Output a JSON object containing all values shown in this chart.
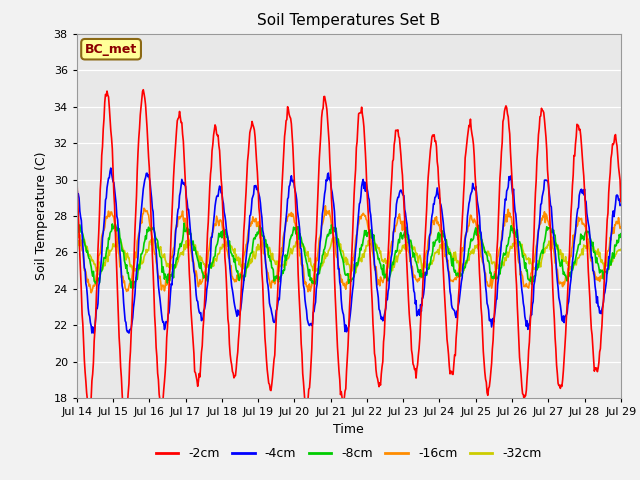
{
  "title": "Soil Temperatures Set B",
  "xlabel": "Time",
  "ylabel": "Soil Temperature (C)",
  "ylim": [
    18,
    38
  ],
  "yticks": [
    18,
    20,
    22,
    24,
    26,
    28,
    30,
    32,
    34,
    36,
    38
  ],
  "xtick_labels": [
    "Jul 14",
    "Jul 15",
    "Jul 16",
    "Jul 17",
    "Jul 18",
    "Jul 19",
    "Jul 20",
    "Jul 21",
    "Jul 22",
    "Jul 23",
    "Jul 24",
    "Jul 25",
    "Jul 26",
    "Jul 27",
    "Jul 28",
    "Jul 29"
  ],
  "series_colors": {
    "-2cm": "#FF0000",
    "-4cm": "#0000FF",
    "-8cm": "#00CC00",
    "-16cm": "#FF8C00",
    "-32cm": "#CCCC00"
  },
  "legend_label": "BC_met",
  "legend_fg": "#8B0000",
  "legend_bg": "#FFFF99",
  "legend_border": "#8B6914",
  "plot_bg": "#E8E8E8",
  "fig_bg": "#F2F2F2",
  "grid_color": "#FFFFFF",
  "linewidth": 1.2,
  "n_days": 15,
  "samples_per_day": 48,
  "mean_temp": 26.0,
  "amplitudes": {
    "-2cm": 8.0,
    "-4cm": 4.0,
    "-8cm": 1.4,
    "-16cm": 2.0,
    "-32cm": 0.7
  },
  "phase_lags_hours": {
    "-2cm": 0.0,
    "-4cm": 2.5,
    "-8cm": 5.0,
    "-16cm": 1.5,
    "-32cm": 7.0
  },
  "mean_temps": {
    "-2cm": 26.0,
    "-4cm": 26.0,
    "-8cm": 25.9,
    "-16cm": 26.1,
    "-32cm": 25.85
  },
  "noise_scale": 0.15,
  "peak_hour": 14.0,
  "amp_trend_factor": 0.85,
  "amp_trend_days": 15
}
